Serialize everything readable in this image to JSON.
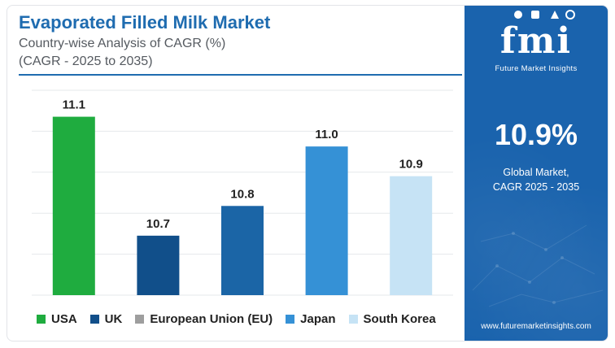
{
  "header": {
    "title": "Evaporated Filled Milk Market",
    "subtitle": "Country-wise Analysis of CAGR (%)",
    "subtitle2": "(CAGR - 2025 to 2035)"
  },
  "sidebar": {
    "logo_text": "fmi",
    "logo_tagline": "Future Market Insights",
    "global_value": "10.9%",
    "global_label_line1": "Global Market,",
    "global_label_line2": "CAGR 2025 - 2035",
    "website": "www.futuremarketinsights.com",
    "background_color": "#1a63ad"
  },
  "chart_data": {
    "type": "bar",
    "title": "Evaporated Filled Milk Market",
    "categories": [
      "USA",
      "UK",
      "European Union (EU)",
      "Japan",
      "South Korea"
    ],
    "values": [
      11.1,
      10.7,
      10.8,
      11.0,
      10.9
    ],
    "data_labels": [
      "11.1",
      "10.7",
      "10.8",
      "11.0",
      "10.9"
    ],
    "colors": [
      "#1fac3f",
      "#114f8a",
      "#1b65a6",
      "#3591d6",
      "#c6e3f5"
    ],
    "legend": [
      {
        "label": "USA",
        "color": "#1fac3f"
      },
      {
        "label": "UK",
        "color": "#114f8a"
      },
      {
        "label": "European Union (EU)",
        "color": "#9e9e9e"
      },
      {
        "label": "Japan",
        "color": "#3591d6"
      },
      {
        "label": "South Korea",
        "color": "#c6e3f5"
      }
    ],
    "ylim": [
      10.5,
      11.2
    ],
    "grid": true,
    "legend_position": "bottom",
    "xlabel": "",
    "ylabel": ""
  }
}
